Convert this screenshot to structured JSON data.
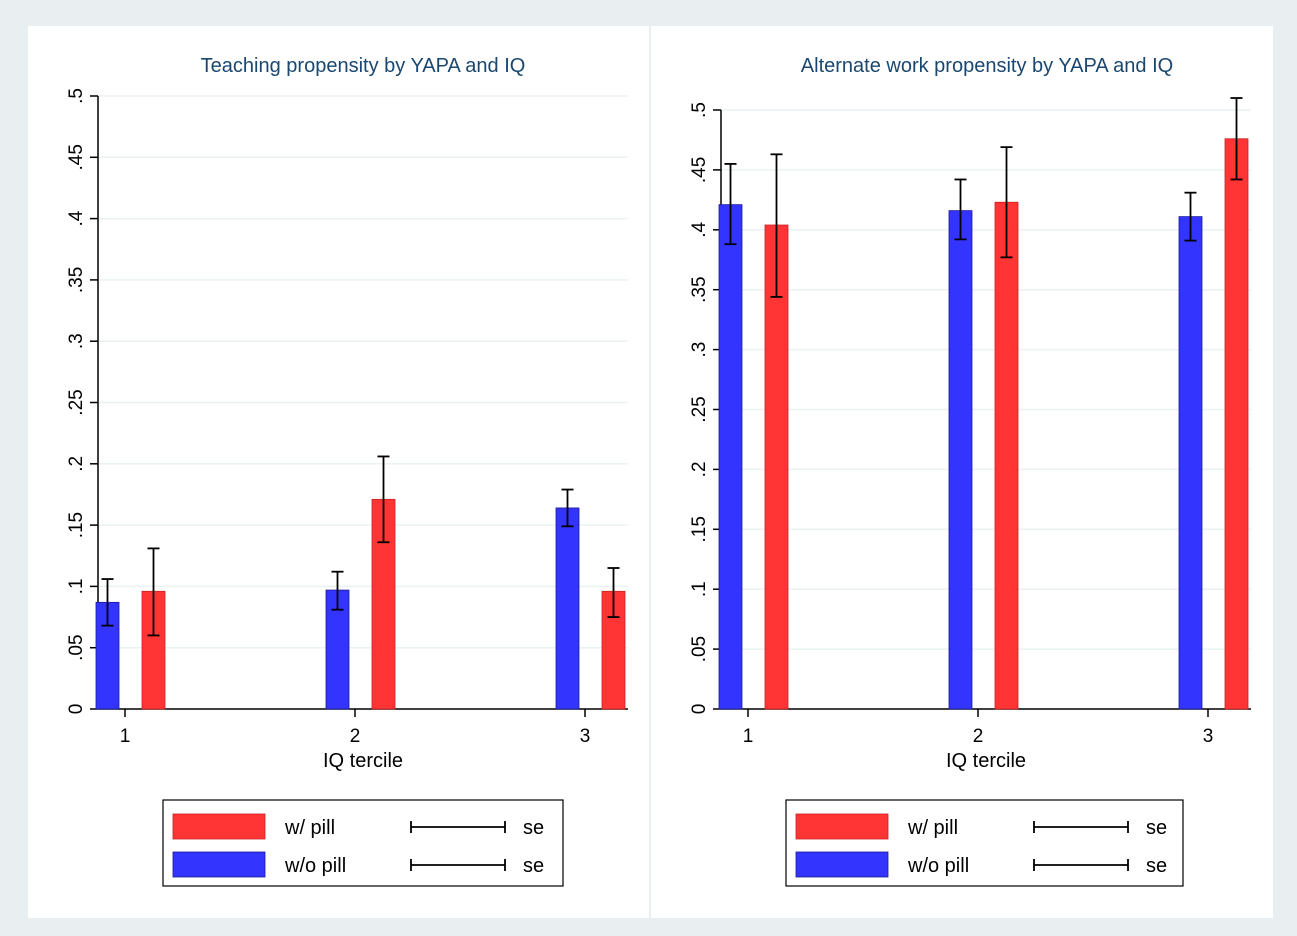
{
  "chart_data": [
    {
      "type": "bar",
      "title": "Teaching propensity by YAPA and IQ",
      "xlabel": "IQ tercile",
      "ylabel": "",
      "categories": [
        "1",
        "2",
        "3"
      ],
      "ylim": [
        0,
        0.5
      ],
      "y_ticks": [
        "0",
        ".05",
        ".1",
        ".15",
        ".2",
        ".25",
        ".3",
        ".35",
        ".4",
        ".45",
        ".5"
      ],
      "grid": true,
      "legend_position": "bottom",
      "series": [
        {
          "name": "w/o pill",
          "color": "#3434ff",
          "values": [
            0.087,
            0.097,
            0.164
          ],
          "se_low": [
            0.068,
            0.081,
            0.149
          ],
          "se_high": [
            0.106,
            0.112,
            0.179
          ]
        },
        {
          "name": "w/ pill",
          "color": "#ff3434",
          "values": [
            0.096,
            0.171,
            0.096
          ],
          "se_low": [
            0.06,
            0.136,
            0.075
          ],
          "se_high": [
            0.131,
            0.206,
            0.115
          ]
        }
      ],
      "legend": [
        {
          "label": "w/ pill",
          "se_label": "se"
        },
        {
          "label": "w/o pill",
          "se_label": "se"
        }
      ]
    },
    {
      "type": "bar",
      "title": "Alternate work propensity by YAPA and IQ",
      "xlabel": "IQ tercile",
      "ylabel": "",
      "categories": [
        "1",
        "2",
        "3"
      ],
      "ylim": [
        0,
        0.5
      ],
      "y_ticks": [
        "0",
        ".05",
        ".1",
        ".15",
        ".2",
        ".25",
        ".3",
        ".35",
        ".4",
        ".45",
        ".5"
      ],
      "grid": true,
      "legend_position": "bottom",
      "series": [
        {
          "name": "w/o pill",
          "color": "#3434ff",
          "values": [
            0.421,
            0.416,
            0.411
          ],
          "se_low": [
            0.388,
            0.392,
            0.391
          ],
          "se_high": [
            0.455,
            0.442,
            0.431
          ]
        },
        {
          "name": "w/ pill",
          "color": "#ff3434",
          "values": [
            0.404,
            0.423,
            0.476
          ],
          "se_low": [
            0.344,
            0.377,
            0.442
          ],
          "se_high": [
            0.463,
            0.469,
            0.51
          ]
        }
      ],
      "legend": [
        {
          "label": "w/ pill",
          "se_label": "se"
        },
        {
          "label": "w/o pill",
          "se_label": "se"
        }
      ]
    }
  ]
}
